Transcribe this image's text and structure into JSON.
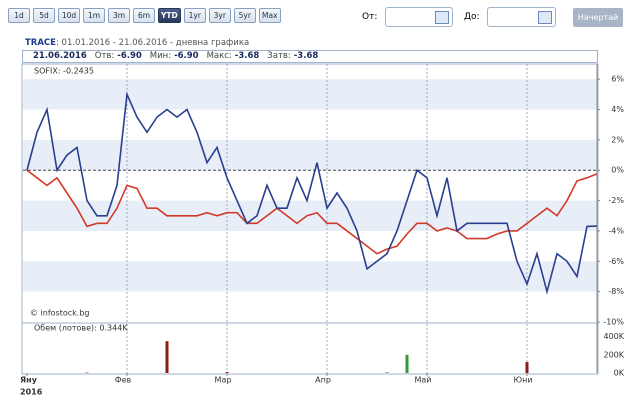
{
  "controls": {
    "periods": [
      "1d",
      "5d",
      "10d",
      "1m",
      "3m",
      "6m",
      "YTD",
      "1yr",
      "3yr",
      "5yr",
      "Max"
    ],
    "active": "YTD",
    "from_label": "От:",
    "to_label": "До:",
    "submit": "Начертай"
  },
  "header": {
    "symbol": "TRACE",
    "period": ": 01.01.2016 - 21.06.2016 - дневна графика",
    "date": "21.06.2016",
    "stats": [
      {
        "label": "Отв:",
        "value": "-6.90"
      },
      {
        "label": "Мин:",
        "value": "-6.90"
      },
      {
        "label": "Макс:",
        "value": "-3.68"
      },
      {
        "label": "Затв:",
        "value": "-3.68"
      }
    ]
  },
  "chart_data": {
    "type": "line",
    "categories": [
      "Яну",
      null,
      null,
      null,
      null,
      null,
      null,
      null,
      null,
      null,
      "Фев",
      null,
      null,
      null,
      null,
      null,
      null,
      null,
      null,
      null,
      "Мар",
      null,
      null,
      null,
      null,
      null,
      null,
      null,
      null,
      null,
      "Апр",
      null,
      null,
      null,
      null,
      null,
      null,
      null,
      null,
      null,
      "Май",
      null,
      null,
      null,
      null,
      null,
      null,
      null,
      null,
      null,
      "Юни",
      null,
      null,
      null,
      null,
      null,
      null,
      null
    ],
    "year_label": "2016",
    "series": [
      {
        "color": "#2b3f8f",
        "values": [
          0,
          2.5,
          4,
          0,
          1,
          1.5,
          -2,
          -3,
          -3,
          -1,
          5,
          3.5,
          2.5,
          3.5,
          4,
          3.5,
          4,
          2.5,
          0.5,
          1.5,
          -0.5,
          -2,
          -3.5,
          -3,
          -1,
          -2.5,
          -2.5,
          -0.5,
          -2,
          0.5,
          -2.5,
          -1.5,
          -2.5,
          -4,
          -6.5,
          -6,
          -5.5,
          -4,
          -2,
          0,
          -0.5,
          -3,
          -0.5,
          -4,
          -3.5,
          -3.5,
          -3.5,
          -3.5,
          -3.5,
          -6,
          -7.5,
          -5.5,
          -8,
          -5.5,
          -6,
          -7,
          -3.7,
          -3.68
        ]
      },
      {
        "name": "SOFIX: -0.2435",
        "color": "#d23a2a",
        "values": [
          0,
          -0.5,
          -1,
          -0.5,
          -1.5,
          -2.5,
          -3.7,
          -3.5,
          -3.5,
          -2.5,
          -1,
          -1.2,
          -2.5,
          -2.5,
          -3,
          -3,
          -3,
          -3,
          -2.8,
          -3,
          -2.8,
          -2.8,
          -3.5,
          -3.5,
          -3,
          -2.5,
          -3,
          -3.5,
          -3,
          -2.8,
          -3.5,
          -3.5,
          -4,
          -4.5,
          -5,
          -5.5,
          -5.2,
          -5,
          -4.2,
          -3.5,
          -3.5,
          -4,
          -3.8,
          -4,
          -4.5,
          -4.5,
          -4.5,
          -4.2,
          -4,
          -4,
          -3.5,
          -3,
          -2.5,
          -3,
          -2,
          -0.7,
          -0.5,
          -0.2435
        ]
      }
    ],
    "ylim": [
      -10,
      7
    ],
    "yticks": [
      {
        "value": 6,
        "label": "6%"
      },
      {
        "value": 4,
        "label": "4%"
      },
      {
        "value": 2,
        "label": "2%"
      },
      {
        "value": 0,
        "label": "0%"
      },
      {
        "value": -2,
        "label": "-2%"
      },
      {
        "value": -4,
        "label": "-4%"
      },
      {
        "value": -6,
        "label": "-6%"
      },
      {
        "value": -8,
        "label": "-8%"
      },
      {
        "value": -10,
        "label": "-10%"
      }
    ],
    "watermark": "© infostock.bg",
    "volume": {
      "title": "Обем (лотове): 0.344K",
      "values": [
        0,
        0,
        0,
        0,
        0,
        0,
        5000,
        0,
        0,
        0,
        0,
        0,
        0,
        0,
        350000,
        0,
        0,
        0,
        0,
        0,
        10000,
        0,
        0,
        0,
        0,
        0,
        0,
        0,
        0,
        0,
        0,
        0,
        0,
        0,
        0,
        0,
        8000,
        0,
        200000,
        0,
        0,
        0,
        0,
        0,
        0,
        0,
        0,
        0,
        0,
        0,
        120000,
        0,
        0,
        0,
        0,
        0,
        0,
        0
      ],
      "colors": [
        "#8b1a1a",
        "#8b1a1a",
        "#8b1a1a",
        "#8b1a1a",
        "#8b1a1a",
        "#8b1a1a",
        "#8b1a1a",
        "#8b1a1a",
        "#8b1a1a",
        "#8b1a1a",
        "#8b1a1a",
        "#8b1a1a",
        "#8b1a1a",
        "#8b1a1a",
        "#8b1a1a",
        "#8b1a1a",
        "#8b1a1a",
        "#8b1a1a",
        "#8b1a1a",
        "#8b1a1a",
        "#8b1a1a",
        "#8b1a1a",
        "#8b1a1a",
        "#8b1a1a",
        "#8b1a1a",
        "#8b1a1a",
        "#8b1a1a",
        "#8b1a1a",
        "#8b1a1a",
        "#8b1a1a",
        "#8b1a1a",
        "#8b1a1a",
        "#8b1a1a",
        "#8b1a1a",
        "#8b1a1a",
        "#8b1a1a",
        "#2e9a3a",
        "#8b1a1a",
        "#2e9a3a",
        "#8b1a1a",
        "#8b1a1a",
        "#8b1a1a",
        "#8b1a1a",
        "#8b1a1a",
        "#8b1a1a",
        "#8b1a1a",
        "#8b1a1a",
        "#8b1a1a",
        "#8b1a1a",
        "#8b1a1a",
        "#8b1a1a",
        "#8b1a1a",
        "#8b1a1a",
        "#8b1a1a",
        "#8b1a1a",
        "#8b1a1a",
        "#8b1a1a",
        "#8b1a1a"
      ],
      "ylim": [
        0,
        550000
      ],
      "yticks": [
        {
          "value": 400000,
          "label": "400K"
        },
        {
          "value": 200000,
          "label": "200K"
        },
        {
          "value": 0,
          "label": "0K"
        }
      ]
    }
  }
}
